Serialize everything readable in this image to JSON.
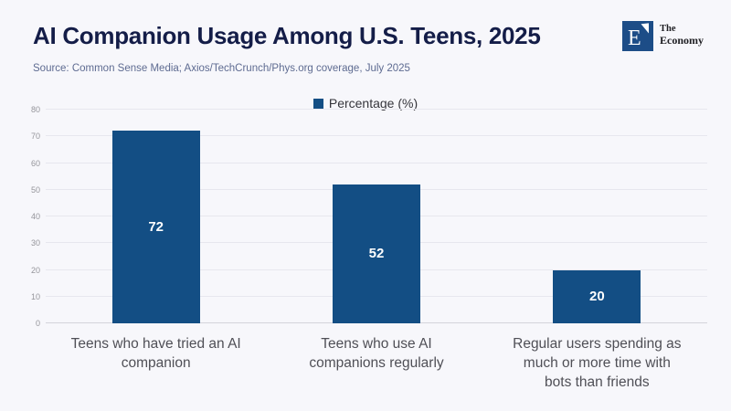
{
  "header": {
    "title": "AI Companion Usage Among U.S. Teens, 2025",
    "source": "Source: Common Sense Media; Axios/TechCrunch/Phys.org coverage, July 2025",
    "logo": {
      "mark": "E",
      "line1": "The",
      "line2": "Economy"
    }
  },
  "legend": {
    "label": "Percentage (%)"
  },
  "colors": {
    "background": "#f7f7fb",
    "bar": "#134e84",
    "title": "#141d48",
    "source_text": "#5e6b91",
    "axis_label": "#4f4f56",
    "ytick_label": "#95959b",
    "gridline": "#e7e7ee",
    "axis_line": "#d4d4da",
    "logo_square": "#1d4d87",
    "value_label": "#ffffff"
  },
  "chart_data": {
    "type": "bar",
    "title": "AI Companion Usage Among U.S. Teens, 2025",
    "categories": [
      "Teens who have tried an AI companion",
      "Teens who use AI companions regularly",
      "Regular users spending as much or more time with bots than friends"
    ],
    "category_lines": [
      [
        "Teens who have tried an AI",
        "companion"
      ],
      [
        "Teens who use AI",
        "companions regularly"
      ],
      [
        "Regular users spending as",
        "much or more time with",
        "bots than friends"
      ]
    ],
    "values": [
      72,
      52,
      20
    ],
    "value_labels": [
      "72",
      "52",
      "20"
    ],
    "series_name": "Percentage (%)",
    "xlabel": "",
    "ylabel": "",
    "ylim": [
      0,
      80
    ],
    "ytick_interval": 10,
    "yticks": [
      0,
      10,
      20,
      30,
      40,
      50,
      60,
      70,
      80
    ],
    "grid": true,
    "legend_position": "top-center"
  }
}
